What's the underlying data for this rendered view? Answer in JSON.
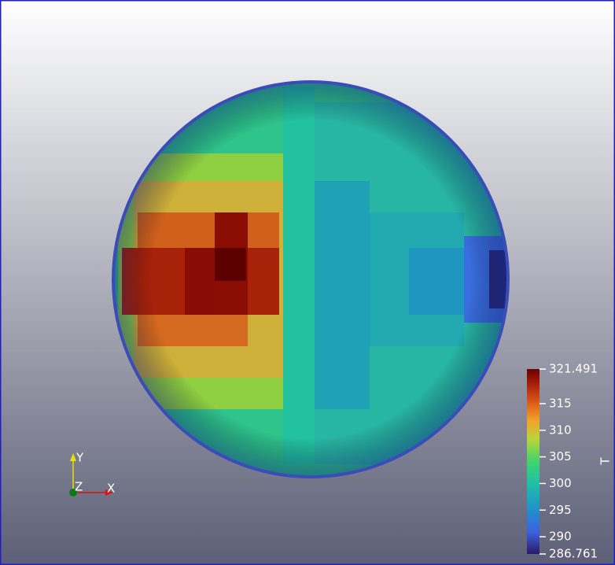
{
  "colorbar": {
    "title": "T",
    "ticks": [
      321.491,
      315,
      310,
      305,
      300,
      295,
      290,
      286.761
    ]
  },
  "axes": {
    "x": "X",
    "y": "Y",
    "z": "Z"
  }
}
